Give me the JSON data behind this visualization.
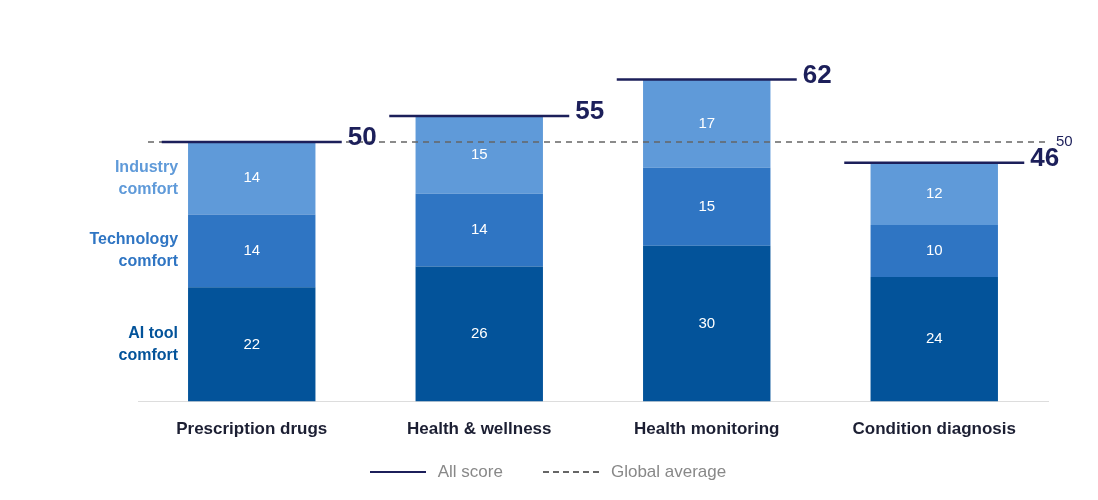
{
  "chart_data": {
    "type": "bar",
    "stacked": true,
    "categories": [
      "Prescription drugs",
      "Health & wellness",
      "Health monitoring",
      "Condition diagnosis"
    ],
    "series": [
      {
        "name": "AI tool comfort",
        "color": "#03539a",
        "values": [
          22,
          26,
          30,
          24
        ]
      },
      {
        "name": "Technology comfort",
        "color": "#2f75c3",
        "values": [
          14,
          14,
          15,
          10
        ]
      },
      {
        "name": "Industry comfort",
        "color": "#5f9ad9",
        "values": [
          14,
          15,
          17,
          12
        ]
      }
    ],
    "totals": [
      "50",
      "55",
      "62",
      "46"
    ],
    "ref_lines": [
      {
        "axis": "y",
        "value": 50,
        "label": "50",
        "color": "#666666",
        "line_style": "dashed"
      }
    ],
    "annotations": [
      "All score",
      "Global average"
    ],
    "data_labels": true,
    "grid": false,
    "legend": "bottom"
  }
}
